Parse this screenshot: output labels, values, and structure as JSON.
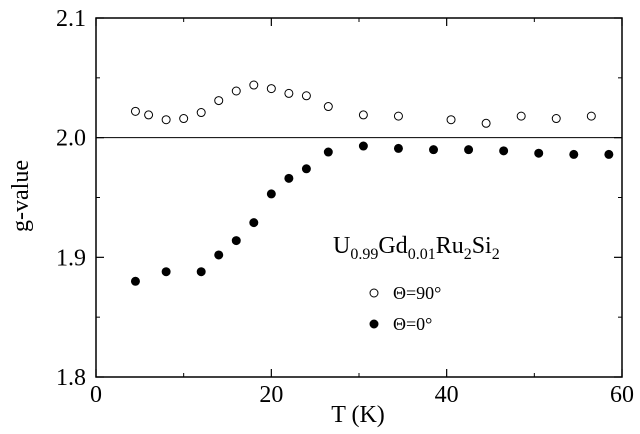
{
  "chart_data": {
    "type": "scatter",
    "xlabel": "T (K)",
    "ylabel": "g-value",
    "xlim": [
      0,
      60
    ],
    "ylim": [
      1.8,
      2.1
    ],
    "xticks": [
      "0",
      "20",
      "40",
      "60"
    ],
    "yticks": [
      "1.8",
      "1.9",
      "2.0",
      "2.1"
    ],
    "reference_line_y": 2.0,
    "annotation": {
      "parts": [
        {
          "text": "U",
          "sub": false
        },
        {
          "text": "0.99",
          "sub": true
        },
        {
          "text": "Gd",
          "sub": false
        },
        {
          "text": "0.01",
          "sub": true
        },
        {
          "text": "Ru",
          "sub": false
        },
        {
          "text": "2",
          "sub": true
        },
        {
          "text": "Si",
          "sub": false
        },
        {
          "text": "2",
          "sub": true
        }
      ]
    },
    "legend_position": "right",
    "series": [
      {
        "name": "Θ=90°",
        "marker": "open-circle",
        "x": [
          4.5,
          6,
          8,
          10,
          12,
          14,
          16,
          18,
          20,
          22,
          24,
          26.5,
          30.5,
          34.5,
          40.5,
          44.5,
          48.5,
          52.5,
          56.5
        ],
        "y": [
          2.022,
          2.019,
          2.015,
          2.016,
          2.021,
          2.031,
          2.039,
          2.044,
          2.041,
          2.037,
          2.035,
          2.026,
          2.019,
          2.018,
          2.015,
          2.012,
          2.018,
          2.016,
          2.018
        ]
      },
      {
        "name": "Θ=0°",
        "marker": "filled-circle",
        "x": [
          4.5,
          8,
          12,
          14,
          16,
          18,
          20,
          22,
          24,
          26.5,
          30.5,
          34.5,
          38.5,
          42.5,
          46.5,
          50.5,
          54.5,
          58.5
        ],
        "y": [
          1.88,
          1.888,
          1.888,
          1.902,
          1.914,
          1.929,
          1.953,
          1.966,
          1.974,
          1.988,
          1.993,
          1.991,
          1.99,
          1.99,
          1.989,
          1.987,
          1.986,
          1.986
        ]
      }
    ]
  },
  "legend_symbols": [
    "o",
    "●"
  ]
}
